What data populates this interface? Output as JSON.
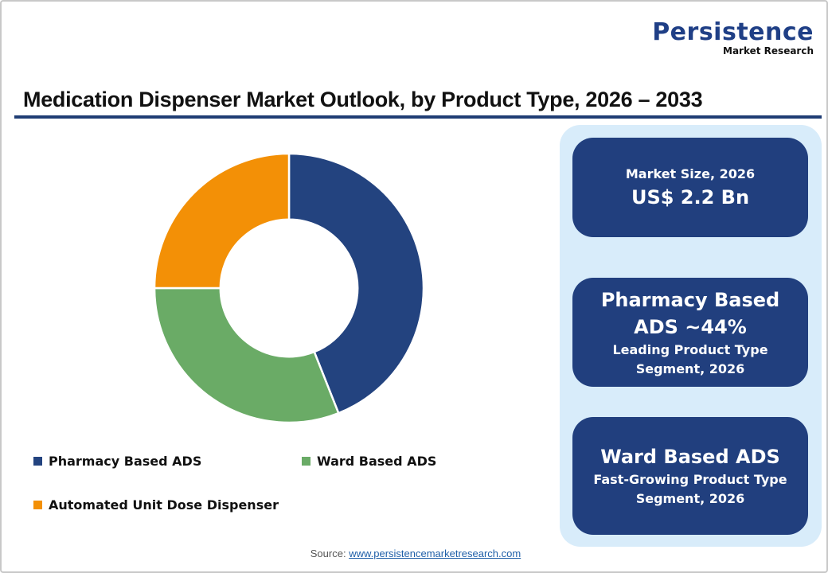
{
  "logo": {
    "main": "Persistence",
    "sub": "Market Research"
  },
  "header": {
    "title": "Medication Dispenser Market Outlook, by Product Type, 2026 – 2033"
  },
  "legend": {
    "items": [
      {
        "label": "Pharmacy Based ADS",
        "color": "#23437f"
      },
      {
        "label": "Ward Based ADS",
        "color": "#6aab66"
      },
      {
        "label": "Automated Unit Dose Dispenser",
        "color": "#f39006"
      }
    ]
  },
  "cards": [
    {
      "line1": "Market Size, 2026",
      "line2": "US$ 2.2 Bn"
    },
    {
      "line1": "Pharmacy Based",
      "line2": "ADS ~44%",
      "line3": "Leading Product Type",
      "line4": "Segment, 2026"
    },
    {
      "line1": "Ward Based ADS",
      "line2": "Fast-Growing Product Type",
      "line3": "Segment, 2026"
    }
  ],
  "source": {
    "label": "Source: ",
    "link": "www.persistencemarketresearch.com"
  },
  "colors": {
    "brand_navy": "#213f7e",
    "panel_bg": "#d8ecfa",
    "title_rule": "#1f3d74"
  },
  "chart_data": {
    "type": "pie",
    "subtype": "donut",
    "title": "Medication Dispenser Market Outlook, by Product Type, 2026 – 2033",
    "categories": [
      "Pharmacy Based ADS",
      "Ward Based ADS",
      "Automated Unit Dose Dispenser"
    ],
    "values": [
      44,
      31,
      25
    ],
    "unit": "% share (estimated; only Pharmacy Based ADS ~44% labeled)",
    "colors": [
      "#23437f",
      "#6aab66",
      "#f39006"
    ],
    "start_angle_deg": 0,
    "direction": "clockwise",
    "inner_radius_ratio": 0.51,
    "legend_position": "bottom",
    "annotations": [
      "Market Size, 2026: US$ 2.2 Bn",
      "Pharmacy Based ADS ~44% Leading Product Type Segment, 2026",
      "Ward Based ADS Fast-Growing Product Type Segment, 2026"
    ]
  }
}
